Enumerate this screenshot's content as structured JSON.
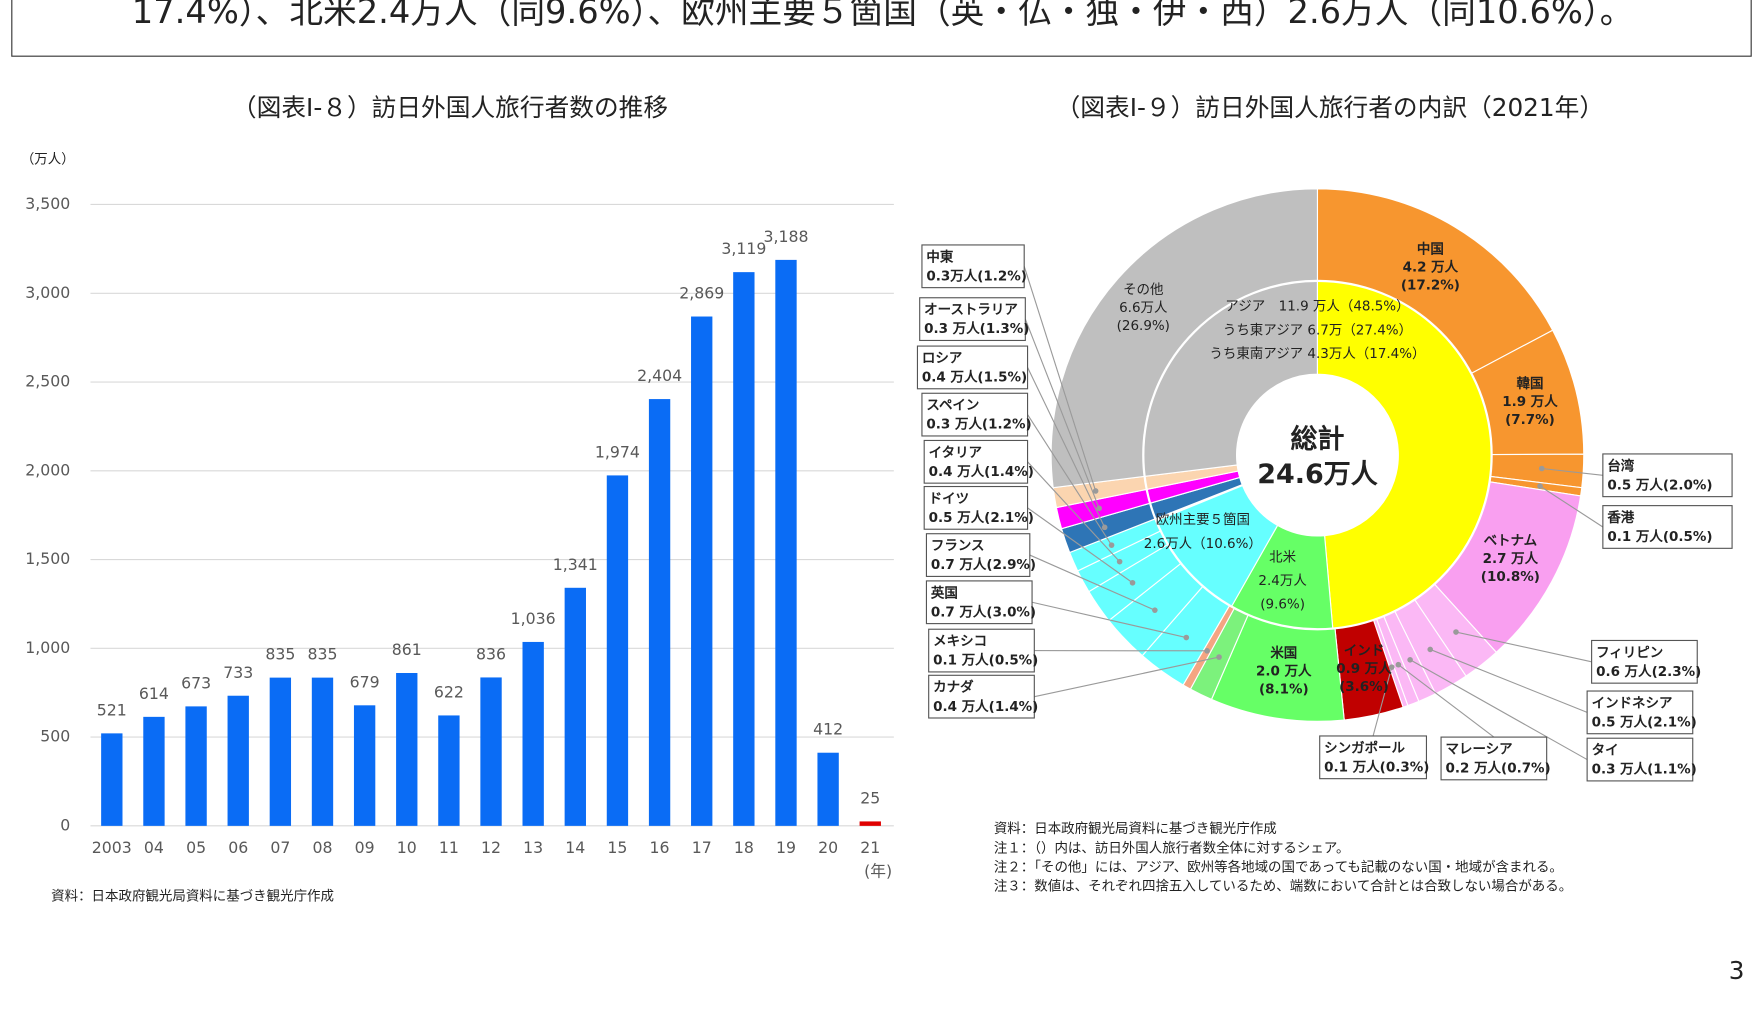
{
  "header_text": "17.4%）、北米2.4万人（同9.6%）、欧州主要５箇国（英・仏・独・伊・西）2.6万人（同10.6%）。",
  "page_number": "3",
  "chart_data": [
    {
      "type": "bar",
      "title": "（図表Ⅰ-８）訪日外国人旅行者数の推移",
      "y_unit": "（万人）",
      "x_unit": "(年)",
      "source": "資料：日本政府観光局資料に基づき観光庁作成",
      "categories": [
        "2003",
        "04",
        "05",
        "06",
        "07",
        "08",
        "09",
        "10",
        "11",
        "12",
        "13",
        "14",
        "15",
        "16",
        "17",
        "18",
        "19",
        "20",
        "21"
      ],
      "values": [
        521,
        614,
        673,
        733,
        835,
        835,
        679,
        861,
        622,
        836,
        1036,
        1341,
        1974,
        2404,
        2869,
        3119,
        3188,
        412,
        25
      ],
      "value_labels": [
        "521",
        "614",
        "673",
        "733",
        "835",
        "835",
        "679",
        "861",
        "622",
        "836",
        "1,036",
        "1,341",
        "1,974",
        "2,404",
        "2,869",
        "3,119",
        "3,188",
        "412",
        "25"
      ],
      "colors": [
        "#0a6cf5",
        "#0a6cf5",
        "#0a6cf5",
        "#0a6cf5",
        "#0a6cf5",
        "#0a6cf5",
        "#0a6cf5",
        "#0a6cf5",
        "#0a6cf5",
        "#0a6cf5",
        "#0a6cf5",
        "#0a6cf5",
        "#0a6cf5",
        "#0a6cf5",
        "#0a6cf5",
        "#0a6cf5",
        "#0a6cf5",
        "#0a6cf5",
        "#e00000"
      ],
      "ylim": [
        0,
        3500
      ],
      "yticks": [
        0,
        500,
        {
          "value": 1000,
          "label": "1,000"
        },
        {
          "value": 1500,
          "label": "1,500"
        },
        {
          "value": 2000,
          "label": "2,000"
        },
        {
          "value": 2500,
          "label": "2,500"
        },
        {
          "value": 3000,
          "label": "3,000"
        },
        {
          "value": 3500,
          "label": "3,500"
        }
      ],
      "grid": true
    },
    {
      "type": "donut",
      "title": "（図表Ⅰ-９）訪日外国人旅行者の内訳（2021年）",
      "center_text": [
        "総計",
        "24.6万人"
      ],
      "outer": [
        {
          "name": "中国",
          "value": 4.2,
          "value_label": "4.2 万人",
          "share": 17.2,
          "share_label": "(17.2%)",
          "color": "#f7962f"
        },
        {
          "name": "韓国",
          "value": 1.9,
          "value_label": "1.9 万人",
          "share": 7.7,
          "share_label": "(7.7%)",
          "color": "#f7962f"
        },
        {
          "name": "台湾",
          "value": 0.5,
          "value_label": "0.5 万人",
          "share": 2.0,
          "share_label": "(2.0%)",
          "color": "#f7962f"
        },
        {
          "name": "香港",
          "value": 0.1,
          "value_label": "0.1 万人",
          "share": 0.5,
          "share_label": "(0.5%)",
          "color": "#f7962f"
        },
        {
          "name": "ベトナム",
          "value": 2.7,
          "value_label": "2.7 万人",
          "share": 10.8,
          "share_label": "(10.8%)",
          "color": "#f99ff0"
        },
        {
          "name": "フィリピン",
          "value": 0.6,
          "value_label": "0.6 万人",
          "share": 2.3,
          "share_label": "(2.3%)",
          "color": "#fbb8f5"
        },
        {
          "name": "インドネシア",
          "value": 0.5,
          "value_label": "0.5 万人",
          "share": 2.1,
          "share_label": "(2.1%)",
          "color": "#fbb8f5"
        },
        {
          "name": "タイ",
          "value": 0.3,
          "value_label": "0.3 万人",
          "share": 1.1,
          "share_label": "(1.1%)",
          "color": "#fbb8f5"
        },
        {
          "name": "マレーシア",
          "value": 0.2,
          "value_label": "0.2 万人",
          "share": 0.7,
          "share_label": "(0.7%)",
          "color": "#fbb8f5"
        },
        {
          "name": "シンガポール",
          "value": 0.1,
          "value_label": "0.1 万人",
          "share": 0.3,
          "share_label": "(0.3%)",
          "color": "#fbb8f5"
        },
        {
          "name": "インド",
          "value": 0.9,
          "value_label": "0.9 万人",
          "share": 3.6,
          "share_label": "(3.6%)",
          "color": "#c00000"
        },
        {
          "name": "米国",
          "value": 2.0,
          "value_label": "2.0 万人",
          "share": 8.1,
          "share_label": "(8.1%)",
          "color": "#66ff66"
        },
        {
          "name": "カナダ",
          "value": 0.4,
          "value_label": "0.4 万人",
          "share": 1.4,
          "share_label": "(1.4%)",
          "color": "#7cf27c"
        },
        {
          "name": "メキシコ",
          "value": 0.1,
          "value_label": "0.1 万人",
          "share": 0.5,
          "share_label": "(0.5%)",
          "color": "#f4a582"
        },
        {
          "name": "英国",
          "value": 0.7,
          "value_label": "0.7 万人",
          "share": 3.0,
          "share_label": "(3.0%)",
          "color": "#66ffff"
        },
        {
          "name": "フランス",
          "value": 0.7,
          "value_label": "0.7 万人",
          "share": 2.9,
          "share_label": "(2.9%)",
          "color": "#66ffff"
        },
        {
          "name": "ドイツ",
          "value": 0.5,
          "value_label": "0.5 万人",
          "share": 2.1,
          "share_label": "(2.1%)",
          "color": "#66ffff"
        },
        {
          "name": "イタリア",
          "value": 0.4,
          "value_label": "0.4 万人",
          "share": 1.4,
          "share_label": "(1.4%)",
          "color": "#66ffff"
        },
        {
          "name": "スペイン",
          "value": 0.3,
          "value_label": "0.3 万人",
          "share": 1.2,
          "share_label": "(1.2%)",
          "color": "#66ffff"
        },
        {
          "name": "ロシア",
          "value": 0.4,
          "value_label": "0.4 万人",
          "share": 1.5,
          "share_label": "(1.5%)",
          "color": "#2e75b6",
          "span": "both"
        },
        {
          "name": "オーストラリア",
          "value": 0.3,
          "value_label": "0.3 万人",
          "share": 1.3,
          "share_label": "(1.3%)",
          "color": "#ff00ff",
          "span": "both"
        },
        {
          "name": "中東",
          "value": 0.3,
          "value_label": "0.3万人",
          "share": 1.2,
          "share_label": "(1.2%)",
          "color": "#fbd5b0",
          "span": "both"
        },
        {
          "name": "その他",
          "value": 6.6,
          "value_label": "6.6万人",
          "share": 26.9,
          "share_label": "(26.9%)",
          "color": "#bfbfbf",
          "span": "both"
        }
      ],
      "inner": [
        {
          "share": 48.5,
          "color": "#ffff00",
          "labels": [
            "アジア　11.9 万人（48.5%）",
            "うち東アジア 6.7万（27.4%）",
            "うち東南アジア 4.3万人（17.4%）"
          ]
        },
        {
          "share": 9.6,
          "color": "#66ff66",
          "labels": [
            "北米",
            "2.4万人",
            "(9.6%)"
          ]
        },
        {
          "share": 10.6,
          "color": "#66ffff",
          "labels": [
            "欧州主要５箇国",
            "2.6万人（10.6%）"
          ]
        }
      ],
      "notes": [
        "資料：日本政府観光局資料に基づき観光庁作成",
        "注１：（）内は、訪日外国人旅行者数全体に対するシェア。",
        "注２：「その他」には、アジア、欧州等各地域の国であっても記載のない国・地域が含まれる。",
        "注３：数値は、それぞれ四捨五入しているため、端数において合計とは合致しない場合がある。"
      ]
    }
  ]
}
